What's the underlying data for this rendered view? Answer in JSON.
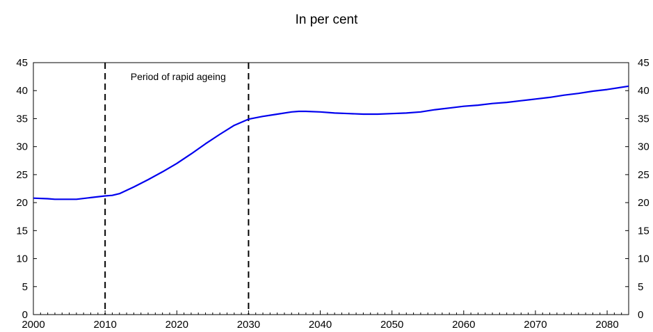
{
  "chart_data": {
    "type": "line",
    "title": "In per cent",
    "xlabel": "",
    "ylabel": "",
    "xlim": [
      2000,
      2083
    ],
    "ylim": [
      0,
      45
    ],
    "x_ticks": [
      2000,
      2010,
      2020,
      2030,
      2040,
      2050,
      2060,
      2070,
      2080
    ],
    "x_tick_labels": [
      "2000",
      "2010",
      "2020",
      "2030",
      "2040",
      "2050",
      "2060",
      "2070",
      "2080"
    ],
    "y_ticks": [
      0,
      5,
      10,
      15,
      20,
      25,
      30,
      35,
      40,
      45
    ],
    "y_tick_labels": [
      "0",
      "5",
      "10",
      "15",
      "20",
      "25",
      "30",
      "35",
      "40",
      "45"
    ],
    "grid": false,
    "legend": "none",
    "series": [
      {
        "color": "#0000ee",
        "x": [
          2000,
          2002,
          2003,
          2004,
          2006,
          2008,
          2010,
          2011,
          2012,
          2014,
          2016,
          2018,
          2020,
          2022,
          2024,
          2026,
          2028,
          2030,
          2032,
          2034,
          2036,
          2037,
          2038,
          2040,
          2042,
          2044,
          2046,
          2048,
          2050,
          2052,
          2054,
          2056,
          2058,
          2060,
          2062,
          2064,
          2066,
          2068,
          2070,
          2072,
          2074,
          2076,
          2078,
          2080,
          2083
        ],
        "y": [
          20.8,
          20.7,
          20.6,
          20.6,
          20.6,
          20.9,
          21.2,
          21.3,
          21.6,
          22.8,
          24.1,
          25.5,
          27.0,
          28.7,
          30.5,
          32.2,
          33.8,
          34.9,
          35.4,
          35.8,
          36.2,
          36.3,
          36.3,
          36.2,
          36.0,
          35.9,
          35.8,
          35.8,
          35.9,
          36.0,
          36.2,
          36.6,
          36.9,
          37.2,
          37.4,
          37.7,
          37.9,
          38.2,
          38.5,
          38.8,
          39.2,
          39.5,
          39.9,
          40.2,
          40.8
        ]
      }
    ],
    "vlines": [
      {
        "x": 2010,
        "style": "dashed",
        "color": "#000000"
      },
      {
        "x": 2030,
        "style": "dashed",
        "color": "#000000"
      }
    ],
    "annotations": [
      {
        "text": "Period of rapid ageing",
        "x": 2020,
        "y": 42.5
      }
    ]
  }
}
